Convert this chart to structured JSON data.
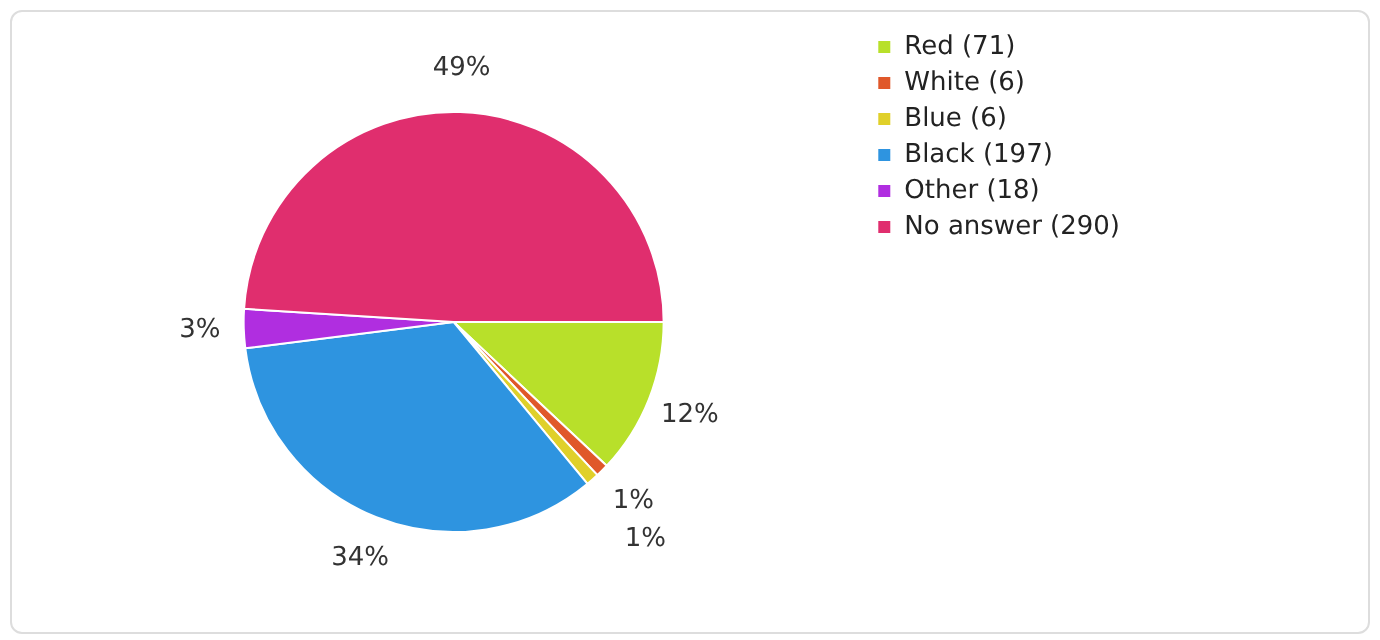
{
  "chart_data": {
    "type": "pie",
    "categories": [
      "Red (71)",
      "White (6)",
      "Blue (6)",
      "Black (197)",
      "Other (18)",
      "No answer (290)"
    ],
    "values": [
      12,
      1,
      1,
      34,
      3,
      49
    ],
    "colors": [
      "#b8e02a",
      "#e0582a",
      "#e0d02a",
      "#2e94e0",
      "#b02ee0",
      "#e02e6e"
    ],
    "value_labels": [
      "12%",
      "1%",
      "1%",
      "34%",
      "3%",
      "49%"
    ],
    "legend": "top right"
  }
}
